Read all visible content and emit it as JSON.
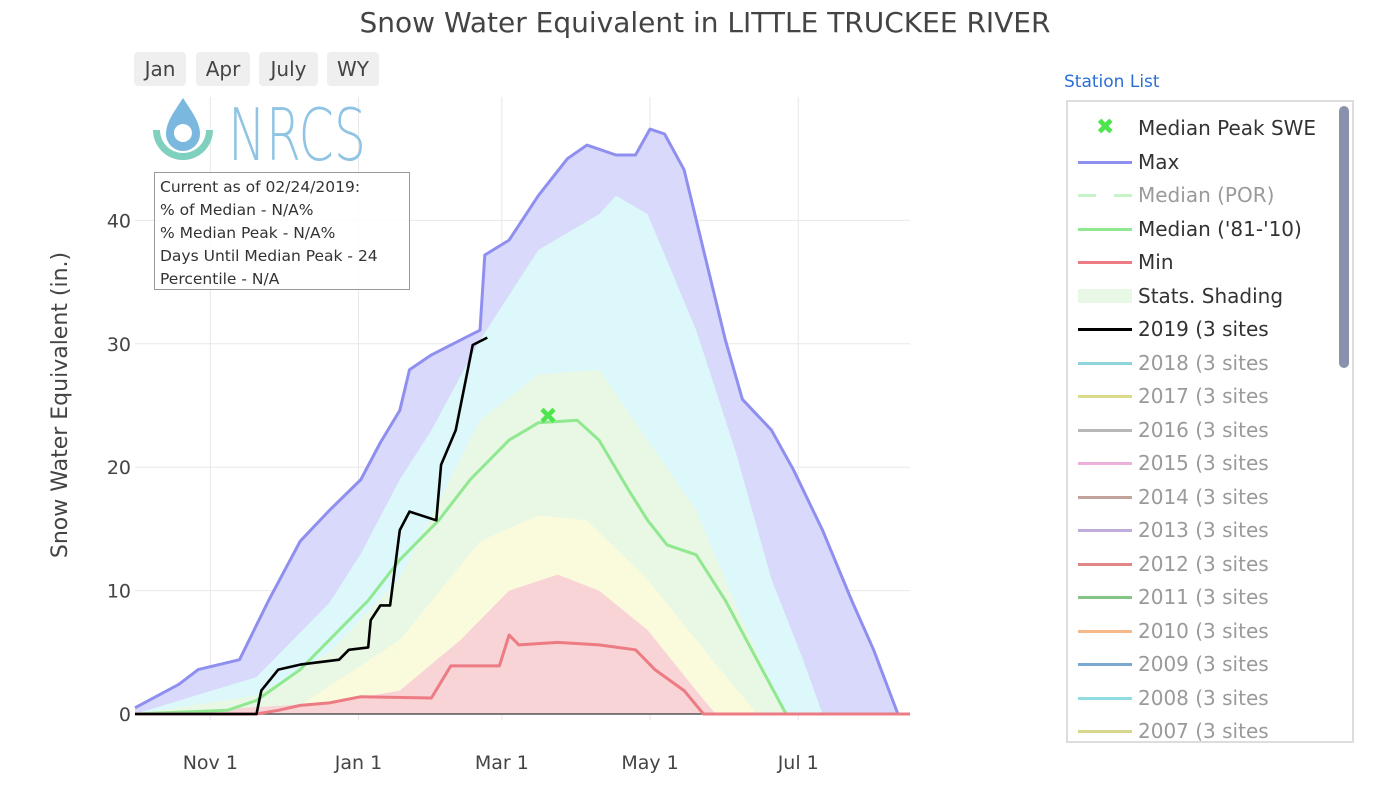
{
  "title": "Snow Water Equivalent in LITTLE TRUCKEE RIVER",
  "range_buttons": [
    "Jan",
    "Apr",
    "July",
    "WY"
  ],
  "logo": {
    "text": "NRCS"
  },
  "info_box": [
    "Current as of 02/24/2019:",
    "% of Median - N/A%",
    "% Median Peak - N/A%",
    "Days Until Median Peak - 24",
    "Percentile - N/A"
  ],
  "station_list_label": "Station List",
  "legend": [
    {
      "label": "Median Peak SWE",
      "color": "#4ee44e",
      "style": "marker-x",
      "active": true
    },
    {
      "label": "Max",
      "color": "#8f8ff0",
      "style": "line",
      "active": true
    },
    {
      "label": "Median (POR)",
      "color": "#c8f2c8",
      "style": "dash",
      "active": false
    },
    {
      "label": "Median ('81-'10)",
      "color": "#90e890",
      "style": "line",
      "active": true
    },
    {
      "label": "Min",
      "color": "#ec7b84",
      "style": "line",
      "active": true
    },
    {
      "label": "Stats. Shading",
      "color": "#e8f8e6",
      "style": "fill",
      "active": true
    },
    {
      "label": "2019 (3 sites",
      "color": "#000000",
      "style": "line",
      "active": true
    },
    {
      "label": "2018 (3 sites",
      "color": "#8fd4dc",
      "style": "line",
      "active": false
    },
    {
      "label": "2017 (3 sites",
      "color": "#dada8a",
      "style": "line",
      "active": false
    },
    {
      "label": "2016 (3 sites",
      "color": "#b8b8b8",
      "style": "line",
      "active": false
    },
    {
      "label": "2015 (3 sites",
      "color": "#edb2dc",
      "style": "line",
      "active": false
    },
    {
      "label": "2014 (3 sites",
      "color": "#c2a39c",
      "style": "line",
      "active": false
    },
    {
      "label": "2013 (3 sites",
      "color": "#c0acdc",
      "style": "line",
      "active": false
    },
    {
      "label": "2012 (3 sites",
      "color": "#e08686",
      "style": "line",
      "active": false
    },
    {
      "label": "2011 (3 sites",
      "color": "#86c486",
      "style": "line",
      "active": false
    },
    {
      "label": "2010 (3 sites",
      "color": "#f6b887",
      "style": "line",
      "active": false
    },
    {
      "label": "2009 (3 sites",
      "color": "#7aa8d2",
      "style": "line",
      "active": false
    },
    {
      "label": "2008 (3 sites",
      "color": "#8fdce2",
      "style": "line",
      "active": false
    },
    {
      "label": "2007 (3 sites",
      "color": "#d6d68c",
      "style": "line",
      "active": false
    }
  ],
  "chart_data": {
    "type": "area",
    "title": "Snow Water Equivalent in LITTLE TRUCKEE RIVER",
    "xlabel": "",
    "ylabel": "Snow Water Equivalent (in.)",
    "xlim": [
      "2018-10-01",
      "2019-08-16"
    ],
    "ylim": [
      -0.5,
      50
    ],
    "x_ticks": [
      {
        "date": "2018-11-01",
        "label": "Nov 1"
      },
      {
        "date": "2019-01-01",
        "label": "Jan 1"
      },
      {
        "date": "2019-03-01",
        "label": "Mar 1"
      },
      {
        "date": "2019-05-01",
        "label": "May 1"
      },
      {
        "date": "2019-07-01",
        "label": "Jul 1"
      }
    ],
    "y_ticks": [
      0,
      10,
      20,
      30,
      40
    ],
    "grid": true,
    "legend_position": "right",
    "shading": [
      {
        "band": "max-90",
        "color": "#d9d9fb",
        "points": [
          [
            "2018-10-01",
            0.5
          ],
          [
            "2018-10-19",
            2.4
          ],
          [
            "2018-10-27",
            3.6
          ],
          [
            "2018-11-13",
            4.4
          ],
          [
            "2018-11-25",
            9.2
          ],
          [
            "2018-12-08",
            14
          ],
          [
            "2018-12-20",
            16.5
          ],
          [
            "2019-01-02",
            19
          ],
          [
            "2019-01-10",
            22
          ],
          [
            "2019-01-18",
            24.6
          ],
          [
            "2019-01-22",
            27.9
          ],
          [
            "2019-01-31",
            29.1
          ],
          [
            "2019-02-12",
            30.3
          ],
          [
            "2019-02-20",
            31.1
          ],
          [
            "2019-02-22",
            37.2
          ],
          [
            "2019-03-04",
            38.4
          ],
          [
            "2019-03-16",
            42
          ],
          [
            "2019-03-28",
            45
          ],
          [
            "2019-04-05",
            46.1
          ],
          [
            "2019-04-17",
            45.3
          ],
          [
            "2019-04-25",
            45.3
          ],
          [
            "2019-05-01",
            47.4
          ],
          [
            "2019-05-07",
            47
          ],
          [
            "2019-05-15",
            44.1
          ],
          [
            "2019-05-23",
            37.6
          ],
          [
            "2019-06-01",
            30.3
          ],
          [
            "2019-06-08",
            25.5
          ],
          [
            "2019-06-20",
            23
          ],
          [
            "2019-06-29",
            19.8
          ],
          [
            "2019-07-11",
            14.9
          ],
          [
            "2019-07-23",
            9.2
          ],
          [
            "2019-08-01",
            5.2
          ],
          [
            "2019-08-11",
            0
          ]
        ]
      },
      {
        "band": "90-70",
        "color": "#dcf8fa",
        "points": [
          [
            "2018-10-01",
            0
          ],
          [
            "2018-11-20",
            3
          ],
          [
            "2018-12-20",
            9
          ],
          [
            "2019-01-02",
            13
          ],
          [
            "2019-01-18",
            19
          ],
          [
            "2019-01-31",
            23
          ],
          [
            "2019-02-20",
            30.3
          ],
          [
            "2019-03-16",
            37.6
          ],
          [
            "2019-04-10",
            40.5
          ],
          [
            "2019-04-17",
            42
          ],
          [
            "2019-04-30",
            40.5
          ],
          [
            "2019-05-20",
            31.1
          ],
          [
            "2019-06-05",
            21.4
          ],
          [
            "2019-06-20",
            10.9
          ],
          [
            "2019-07-03",
            4.4
          ],
          [
            "2019-07-11",
            0
          ]
        ]
      },
      {
        "band": "70-30",
        "color": "#e8f8e4",
        "points": [
          [
            "2018-10-01",
            0
          ],
          [
            "2018-11-20",
            1.5
          ],
          [
            "2018-12-20",
            5
          ],
          [
            "2019-01-18",
            11
          ],
          [
            "2019-02-20",
            23.8
          ],
          [
            "2019-03-16",
            27.5
          ],
          [
            "2019-04-10",
            27.9
          ],
          [
            "2019-04-30",
            22.2
          ],
          [
            "2019-05-20",
            16.5
          ],
          [
            "2019-06-08",
            7.6
          ],
          [
            "2019-06-26",
            0
          ]
        ]
      },
      {
        "band": "30-10",
        "color": "#fafadd",
        "points": [
          [
            "2018-10-01",
            0
          ],
          [
            "2018-12-08",
            0.7
          ],
          [
            "2019-01-18",
            6
          ],
          [
            "2019-02-20",
            14
          ],
          [
            "2019-03-16",
            16.1
          ],
          [
            "2019-04-05",
            15.7
          ],
          [
            "2019-04-30",
            10.9
          ],
          [
            "2019-05-20",
            6
          ],
          [
            "2019-06-14",
            0
          ]
        ]
      },
      {
        "band": "10-min",
        "color": "#f8d4d6",
        "points": [
          [
            "2018-10-01",
            0
          ],
          [
            "2018-12-20",
            0.9
          ],
          [
            "2019-01-18",
            1.9
          ],
          [
            "2019-02-12",
            6
          ],
          [
            "2019-03-04",
            10
          ],
          [
            "2019-03-24",
            11.3
          ],
          [
            "2019-04-10",
            10
          ],
          [
            "2019-04-30",
            6.8
          ],
          [
            "2019-05-20",
            1.9
          ],
          [
            "2019-05-28",
            0
          ]
        ]
      }
    ],
    "series": [
      {
        "name": "Max",
        "color": "#8f8ff0",
        "points": [
          [
            "2018-10-01",
            0.5
          ],
          [
            "2018-10-19",
            2.4
          ],
          [
            "2018-10-27",
            3.6
          ],
          [
            "2018-11-13",
            4.4
          ],
          [
            "2018-11-25",
            9.2
          ],
          [
            "2018-12-08",
            14
          ],
          [
            "2018-12-20",
            16.5
          ],
          [
            "2019-01-02",
            19
          ],
          [
            "2019-01-10",
            22
          ],
          [
            "2019-01-18",
            24.6
          ],
          [
            "2019-01-22",
            27.9
          ],
          [
            "2019-01-31",
            29.1
          ],
          [
            "2019-02-12",
            30.3
          ],
          [
            "2019-02-20",
            31.1
          ],
          [
            "2019-02-22",
            37.2
          ],
          [
            "2019-03-04",
            38.4
          ],
          [
            "2019-03-16",
            42
          ],
          [
            "2019-03-28",
            45
          ],
          [
            "2019-04-05",
            46.1
          ],
          [
            "2019-04-17",
            45.3
          ],
          [
            "2019-04-25",
            45.3
          ],
          [
            "2019-05-01",
            47.4
          ],
          [
            "2019-05-07",
            47
          ],
          [
            "2019-05-15",
            44.1
          ],
          [
            "2019-05-23",
            37.6
          ],
          [
            "2019-06-01",
            30.3
          ],
          [
            "2019-06-08",
            25.5
          ],
          [
            "2019-06-20",
            23
          ],
          [
            "2019-06-29",
            19.8
          ],
          [
            "2019-07-11",
            14.9
          ],
          [
            "2019-07-23",
            9.2
          ],
          [
            "2019-08-01",
            5.2
          ],
          [
            "2019-08-11",
            0
          ]
        ]
      },
      {
        "name": "Median ('81-'10)",
        "color": "#90e890",
        "points": [
          [
            "2018-10-01",
            0
          ],
          [
            "2018-11-08",
            0.3
          ],
          [
            "2018-11-20",
            1.1
          ],
          [
            "2018-12-08",
            3.6
          ],
          [
            "2018-12-24",
            6.8
          ],
          [
            "2019-01-05",
            9.2
          ],
          [
            "2019-01-18",
            12.5
          ],
          [
            "2019-02-03",
            15.7
          ],
          [
            "2019-02-16",
            19
          ],
          [
            "2019-03-04",
            22.2
          ],
          [
            "2019-03-16",
            23.6
          ],
          [
            "2019-04-01",
            23.8
          ],
          [
            "2019-04-10",
            22.2
          ],
          [
            "2019-04-22",
            18.2
          ],
          [
            "2019-04-30",
            15.7
          ],
          [
            "2019-05-08",
            13.7
          ],
          [
            "2019-05-20",
            12.9
          ],
          [
            "2019-06-01",
            9.2
          ],
          [
            "2019-06-14",
            4.4
          ],
          [
            "2019-06-26",
            0
          ],
          [
            "2019-08-16",
            0
          ]
        ]
      },
      {
        "name": "Min",
        "color": "#ec7b84",
        "points": [
          [
            "2018-10-01",
            0
          ],
          [
            "2018-11-20",
            0
          ],
          [
            "2018-11-29",
            0.3
          ],
          [
            "2018-12-08",
            0.7
          ],
          [
            "2018-12-20",
            0.9
          ],
          [
            "2019-01-02",
            1.4
          ],
          [
            "2019-01-31",
            1.3
          ],
          [
            "2019-02-08",
            3.9
          ],
          [
            "2019-02-28",
            3.9
          ],
          [
            "2019-03-04",
            6.4
          ],
          [
            "2019-03-08",
            5.6
          ],
          [
            "2019-03-24",
            5.8
          ],
          [
            "2019-04-10",
            5.6
          ],
          [
            "2019-04-25",
            5.2
          ],
          [
            "2019-05-03",
            3.6
          ],
          [
            "2019-05-15",
            1.9
          ],
          [
            "2019-05-23",
            0
          ],
          [
            "2019-08-16",
            0
          ]
        ]
      },
      {
        "name": "2019 (3 sites",
        "color": "#000000",
        "points": [
          [
            "2018-10-01",
            0
          ],
          [
            "2018-11-20",
            0
          ],
          [
            "2018-11-22",
            1.9
          ],
          [
            "2018-11-29",
            3.6
          ],
          [
            "2018-12-08",
            4
          ],
          [
            "2018-12-24",
            4.4
          ],
          [
            "2018-12-28",
            5.2
          ],
          [
            "2019-01-05",
            5.4
          ],
          [
            "2019-01-06",
            7.6
          ],
          [
            "2019-01-10",
            8.8
          ],
          [
            "2019-01-14",
            8.8
          ],
          [
            "2019-01-18",
            14.9
          ],
          [
            "2019-01-22",
            16.4
          ],
          [
            "2019-02-02",
            15.7
          ],
          [
            "2019-02-04",
            20.2
          ],
          [
            "2019-02-10",
            23
          ],
          [
            "2019-02-15",
            27.9
          ],
          [
            "2019-02-17",
            29.9
          ],
          [
            "2019-02-23",
            30.5
          ]
        ]
      }
    ],
    "markers": [
      {
        "name": "Median Peak SWE",
        "date": "2019-03-20",
        "value": 24.2,
        "color": "#4ee44e"
      }
    ]
  }
}
